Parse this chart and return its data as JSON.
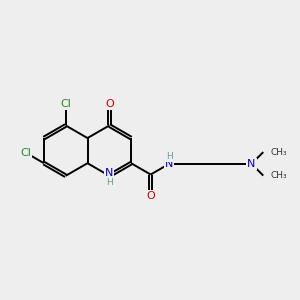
{
  "bg_color": "#eeeeee",
  "atom_colors": {
    "C": "#000000",
    "N": "#0000cc",
    "O": "#cc0000",
    "Cl": "#228B22",
    "H": "#5f9ea0"
  },
  "bond_color": "#000000",
  "bond_width": 1.4,
  "dbo": 0.055,
  "figsize": [
    3.0,
    3.0
  ],
  "dpi": 100
}
